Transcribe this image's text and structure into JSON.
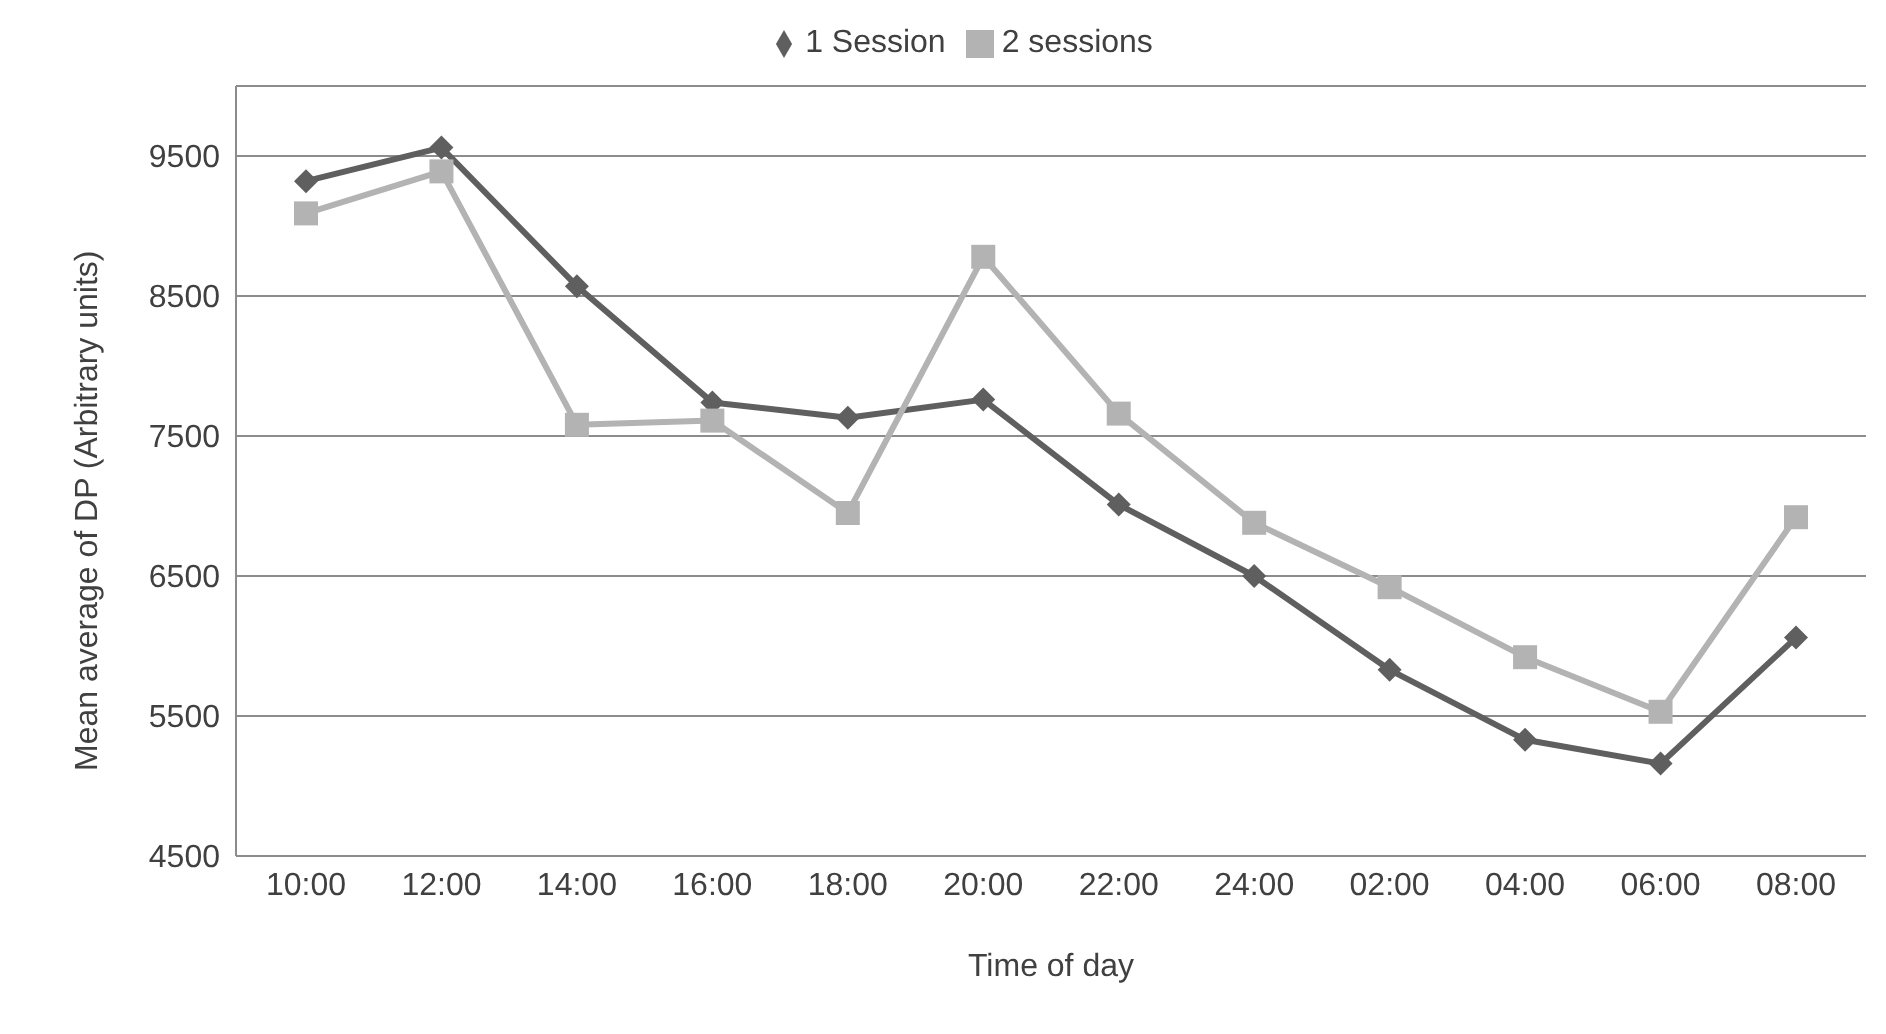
{
  "chart_data": {
    "type": "line",
    "xlabel": "Time of day",
    "ylabel": "Mean average of DP (Arbitrary units)",
    "categories": [
      "10:00",
      "12:00",
      "14:00",
      "16:00",
      "18:00",
      "20:00",
      "22:00",
      "24:00",
      "02:00",
      "04:00",
      "06:00",
      "08:00"
    ],
    "series": [
      {
        "name": "1 Session",
        "color": "#5f5f5f",
        "marker": "diamond",
        "values": [
          9320,
          9560,
          8570,
          7740,
          7630,
          7760,
          7010,
          6500,
          5830,
          5330,
          5160,
          6060
        ]
      },
      {
        "name": "2 sessions",
        "color": "#b3b3b3",
        "marker": "square",
        "values": [
          9090,
          9390,
          7580,
          7610,
          6950,
          8780,
          7660,
          6880,
          6420,
          5920,
          5530,
          6920
        ]
      }
    ],
    "ylim": [
      4500,
      10000
    ],
    "yticks": [
      4500,
      5500,
      6500,
      7500,
      8500,
      9500
    ],
    "grid": "y",
    "legend": "top"
  }
}
